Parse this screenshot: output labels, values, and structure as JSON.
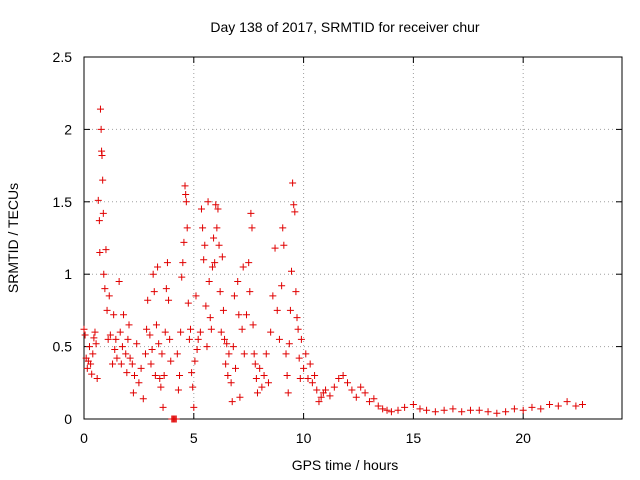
{
  "chart_data": {
    "type": "scatter",
    "title": "Day 138 of 2017, SRMTID for receiver chur",
    "xlabel": "GPS time / hours",
    "ylabel": "SRMTID / TECUs",
    "xlim": [
      0,
      24.5
    ],
    "ylim": [
      0,
      2.5
    ],
    "xticks": [
      0,
      5,
      10,
      15,
      20
    ],
    "xtick_labels": [
      "0",
      "5",
      "10",
      "15",
      "20"
    ],
    "yticks": [
      0,
      0.5,
      1,
      1.5,
      2,
      2.5
    ],
    "ytick_labels": [
      "0",
      "0.5",
      "1",
      "1.5",
      "2",
      "2.5"
    ],
    "grid": true,
    "marker": "plus",
    "color": "#e00000",
    "series": [
      {
        "name": "SRMTID",
        "points": [
          [
            0.0,
            0.62
          ],
          [
            0.05,
            0.58
          ],
          [
            0.1,
            0.42
          ],
          [
            0.15,
            0.35
          ],
          [
            0.2,
            0.4
          ],
          [
            0.25,
            0.5
          ],
          [
            0.3,
            0.38
          ],
          [
            0.35,
            0.31
          ],
          [
            0.4,
            0.45
          ],
          [
            0.45,
            0.56
          ],
          [
            0.5,
            0.6
          ],
          [
            0.55,
            0.52
          ],
          [
            0.6,
            0.28
          ],
          [
            0.65,
            1.51
          ],
          [
            0.7,
            1.37
          ],
          [
            0.72,
            1.15
          ],
          [
            0.75,
            2.14
          ],
          [
            0.78,
            2.0
          ],
          [
            0.8,
            1.85
          ],
          [
            0.82,
            1.82
          ],
          [
            0.85,
            1.65
          ],
          [
            0.88,
            1.42
          ],
          [
            0.9,
            1.0
          ],
          [
            0.95,
            0.9
          ],
          [
            1.0,
            1.17
          ],
          [
            1.05,
            0.75
          ],
          [
            1.1,
            0.55
          ],
          [
            1.15,
            0.85
          ],
          [
            1.2,
            0.58
          ],
          [
            1.3,
            0.38
          ],
          [
            1.35,
            0.72
          ],
          [
            1.4,
            0.48
          ],
          [
            1.45,
            0.55
          ],
          [
            1.5,
            0.42
          ],
          [
            1.6,
            0.95
          ],
          [
            1.65,
            0.6
          ],
          [
            1.7,
            0.38
          ],
          [
            1.75,
            0.5
          ],
          [
            1.8,
            0.72
          ],
          [
            1.9,
            0.45
          ],
          [
            1.95,
            0.32
          ],
          [
            2.0,
            0.55
          ],
          [
            2.05,
            0.65
          ],
          [
            2.1,
            0.42
          ],
          [
            2.2,
            0.38
          ],
          [
            2.25,
            0.18
          ],
          [
            2.3,
            0.3
          ],
          [
            2.4,
            0.52
          ],
          [
            2.5,
            0.25
          ],
          [
            2.6,
            0.35
          ],
          [
            2.7,
            0.14
          ],
          [
            2.8,
            0.45
          ],
          [
            2.85,
            0.62
          ],
          [
            2.9,
            0.82
          ],
          [
            3.0,
            0.58
          ],
          [
            3.05,
            0.38
          ],
          [
            3.1,
            0.48
          ],
          [
            3.15,
            1.0
          ],
          [
            3.2,
            0.88
          ],
          [
            3.25,
            0.3
          ],
          [
            3.3,
            0.65
          ],
          [
            3.35,
            1.05
          ],
          [
            3.4,
            0.52
          ],
          [
            3.45,
            0.28
          ],
          [
            3.5,
            0.22
          ],
          [
            3.55,
            0.45
          ],
          [
            3.6,
            0.08
          ],
          [
            3.65,
            0.3
          ],
          [
            3.7,
            0.6
          ],
          [
            3.75,
            0.9
          ],
          [
            3.8,
            1.08
          ],
          [
            3.85,
            0.82
          ],
          [
            3.9,
            0.55
          ],
          [
            3.95,
            0.4
          ],
          [
            4.0,
            0.0
          ],
          [
            4.05,
            0.0
          ],
          [
            4.1,
            0.0
          ],
          [
            4.15,
            0.0
          ],
          [
            4.2,
            0.0
          ],
          [
            4.25,
            0.45
          ],
          [
            4.3,
            0.2
          ],
          [
            4.35,
            0.3
          ],
          [
            4.4,
            0.6
          ],
          [
            4.45,
            0.98
          ],
          [
            4.5,
            1.08
          ],
          [
            4.55,
            1.22
          ],
          [
            4.6,
            1.61
          ],
          [
            4.63,
            1.55
          ],
          [
            4.66,
            1.5
          ],
          [
            4.7,
            1.32
          ],
          [
            4.75,
            0.8
          ],
          [
            4.8,
            0.55
          ],
          [
            4.85,
            0.62
          ],
          [
            4.9,
            0.32
          ],
          [
            4.95,
            0.22
          ],
          [
            5.0,
            0.08
          ],
          [
            5.05,
            0.4
          ],
          [
            5.1,
            0.85
          ],
          [
            5.15,
            0.48
          ],
          [
            5.2,
            0.55
          ],
          [
            5.3,
            0.6
          ],
          [
            5.35,
            1.45
          ],
          [
            5.4,
            1.32
          ],
          [
            5.45,
            1.1
          ],
          [
            5.5,
            1.2
          ],
          [
            5.55,
            0.78
          ],
          [
            5.6,
            0.5
          ],
          [
            5.65,
            1.5
          ],
          [
            5.7,
            0.95
          ],
          [
            5.75,
            0.7
          ],
          [
            5.8,
            0.62
          ],
          [
            5.85,
            1.05
          ],
          [
            5.9,
            1.25
          ],
          [
            5.95,
            1.08
          ],
          [
            6.0,
            1.48
          ],
          [
            6.05,
            1.32
          ],
          [
            6.1,
            1.45
          ],
          [
            6.15,
            1.2
          ],
          [
            6.2,
            0.88
          ],
          [
            6.25,
            0.6
          ],
          [
            6.3,
            1.12
          ],
          [
            6.35,
            0.75
          ],
          [
            6.4,
            0.55
          ],
          [
            6.45,
            0.38
          ],
          [
            6.5,
            0.52
          ],
          [
            6.55,
            0.3
          ],
          [
            6.6,
            0.45
          ],
          [
            6.7,
            0.25
          ],
          [
            6.75,
            0.12
          ],
          [
            6.8,
            0.5
          ],
          [
            6.85,
            0.85
          ],
          [
            6.9,
            0.35
          ],
          [
            7.0,
            0.95
          ],
          [
            7.05,
            0.72
          ],
          [
            7.1,
            0.15
          ],
          [
            7.2,
            0.62
          ],
          [
            7.25,
            1.05
          ],
          [
            7.3,
            0.45
          ],
          [
            7.4,
            0.72
          ],
          [
            7.5,
            1.08
          ],
          [
            7.55,
            0.88
          ],
          [
            7.6,
            1.42
          ],
          [
            7.65,
            1.32
          ],
          [
            7.7,
            0.65
          ],
          [
            7.75,
            0.45
          ],
          [
            7.8,
            0.38
          ],
          [
            7.85,
            0.28
          ],
          [
            7.9,
            0.18
          ],
          [
            8.0,
            0.35
          ],
          [
            8.1,
            0.22
          ],
          [
            8.2,
            0.3
          ],
          [
            8.3,
            0.45
          ],
          [
            8.4,
            0.25
          ],
          [
            8.5,
            0.6
          ],
          [
            8.6,
            0.85
          ],
          [
            8.7,
            1.18
          ],
          [
            8.8,
            0.75
          ],
          [
            8.9,
            0.55
          ],
          [
            9.0,
            0.92
          ],
          [
            9.05,
            1.32
          ],
          [
            9.1,
            1.2
          ],
          [
            9.2,
            0.45
          ],
          [
            9.25,
            0.3
          ],
          [
            9.3,
            0.18
          ],
          [
            9.35,
            0.52
          ],
          [
            9.4,
            0.75
          ],
          [
            9.45,
            1.02
          ],
          [
            9.5,
            1.63
          ],
          [
            9.55,
            1.48
          ],
          [
            9.6,
            1.43
          ],
          [
            9.65,
            0.88
          ],
          [
            9.7,
            0.7
          ],
          [
            9.75,
            0.62
          ],
          [
            9.8,
            0.42
          ],
          [
            9.85,
            0.28
          ],
          [
            9.9,
            0.55
          ],
          [
            10.0,
            0.35
          ],
          [
            10.1,
            0.45
          ],
          [
            10.2,
            0.28
          ],
          [
            10.3,
            0.38
          ],
          [
            10.4,
            0.25
          ],
          [
            10.5,
            0.3
          ],
          [
            10.6,
            0.2
          ],
          [
            10.7,
            0.12
          ],
          [
            10.8,
            0.15
          ],
          [
            10.9,
            0.18
          ],
          [
            11.0,
            0.2
          ],
          [
            11.2,
            0.16
          ],
          [
            11.4,
            0.22
          ],
          [
            11.6,
            0.28
          ],
          [
            11.8,
            0.3
          ],
          [
            12.0,
            0.25
          ],
          [
            12.2,
            0.2
          ],
          [
            12.4,
            0.15
          ],
          [
            12.6,
            0.22
          ],
          [
            12.8,
            0.18
          ],
          [
            13.0,
            0.12
          ],
          [
            13.2,
            0.14
          ],
          [
            13.4,
            0.09
          ],
          [
            13.6,
            0.07
          ],
          [
            13.8,
            0.06
          ],
          [
            14.0,
            0.05
          ],
          [
            14.3,
            0.06
          ],
          [
            14.6,
            0.08
          ],
          [
            15.0,
            0.1
          ],
          [
            15.3,
            0.07
          ],
          [
            15.6,
            0.06
          ],
          [
            16.0,
            0.05
          ],
          [
            16.4,
            0.06
          ],
          [
            16.8,
            0.07
          ],
          [
            17.2,
            0.05
          ],
          [
            17.6,
            0.06
          ],
          [
            18.0,
            0.06
          ],
          [
            18.4,
            0.05
          ],
          [
            18.8,
            0.04
          ],
          [
            19.2,
            0.05
          ],
          [
            19.6,
            0.07
          ],
          [
            20.0,
            0.06
          ],
          [
            20.4,
            0.08
          ],
          [
            20.8,
            0.07
          ],
          [
            21.2,
            0.1
          ],
          [
            21.6,
            0.09
          ],
          [
            22.0,
            0.12
          ],
          [
            22.4,
            0.09
          ],
          [
            22.7,
            0.1
          ]
        ]
      }
    ]
  }
}
